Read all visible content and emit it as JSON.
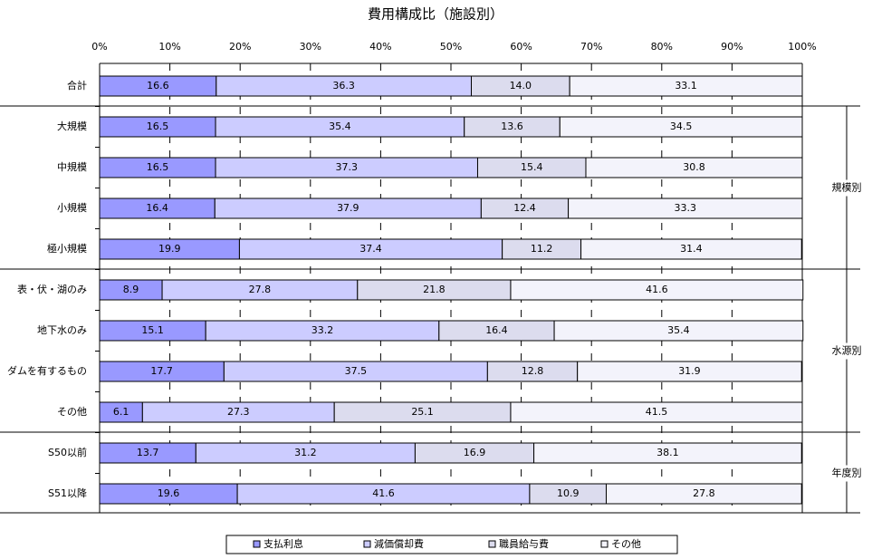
{
  "chart_data": {
    "type": "stacked-bar-horizontal",
    "title": "費用構成比（施設別）",
    "categories": [
      "合計",
      "大規模",
      "中規模",
      "小規模",
      "極小規模",
      "表・伏・湖のみ",
      "地下水のみ",
      "ダムを有するもの",
      "その他",
      "S50以前",
      "S51以降"
    ],
    "groups": [
      "規模別",
      "水源別",
      "年度別"
    ],
    "series": [
      {
        "name": "支払利息",
        "color": "#9999ff",
        "values": [
          16.6,
          16.5,
          16.5,
          16.4,
          19.9,
          8.9,
          15.1,
          17.7,
          6.1,
          13.7,
          19.6
        ],
        "value_labels": [
          "16.6",
          "16.5",
          "16.5",
          "16.4",
          "19.9",
          "8.9",
          "15.1",
          "17.7",
          "6.1",
          "13.7",
          "19.6"
        ]
      },
      {
        "name": "減価償却費",
        "color": "#ccccff",
        "values": [
          36.3,
          35.4,
          37.3,
          37.9,
          37.4,
          27.8,
          33.2,
          37.5,
          27.3,
          31.2,
          41.6
        ],
        "value_labels": [
          "36.3",
          "35.4",
          "37.3",
          "37.9",
          "37.4",
          "27.8",
          "33.2",
          "37.5",
          "27.3",
          "31.2",
          "41.6"
        ]
      },
      {
        "name": "職員給与費",
        "color": "#dcdcee",
        "values": [
          14.0,
          13.6,
          15.4,
          12.4,
          11.2,
          21.8,
          16.4,
          12.8,
          25.1,
          16.9,
          10.9
        ],
        "value_labels": [
          "14.0",
          "13.6",
          "15.4",
          "12.4",
          "11.2",
          "21.8",
          "16.4",
          "12.8",
          "25.1",
          "16.9",
          "10.9"
        ]
      },
      {
        "name": "その他",
        "color": "#f3f3fb",
        "values": [
          33.1,
          34.5,
          30.8,
          33.3,
          31.4,
          41.6,
          35.4,
          31.9,
          41.5,
          38.1,
          27.8
        ],
        "value_labels": [
          "33.1",
          "34.5",
          "30.8",
          "33.3",
          "31.4",
          "41.6",
          "35.4",
          "31.9",
          "41.5",
          "38.1",
          "27.8"
        ]
      }
    ],
    "xlim": [
      0,
      100
    ],
    "xticks": [
      {
        "value": 0,
        "label": "0%"
      },
      {
        "value": 10,
        "label": "10%"
      },
      {
        "value": 20,
        "label": "20%"
      },
      {
        "value": 30,
        "label": "30%"
      },
      {
        "value": 40,
        "label": "40%"
      },
      {
        "value": 50,
        "label": "50%"
      },
      {
        "value": 60,
        "label": "60%"
      },
      {
        "value": 70,
        "label": "70%"
      },
      {
        "value": 80,
        "label": "80%"
      },
      {
        "value": 90,
        "label": "90%"
      },
      {
        "value": 100,
        "label": "100%"
      }
    ],
    "grid": true
  }
}
